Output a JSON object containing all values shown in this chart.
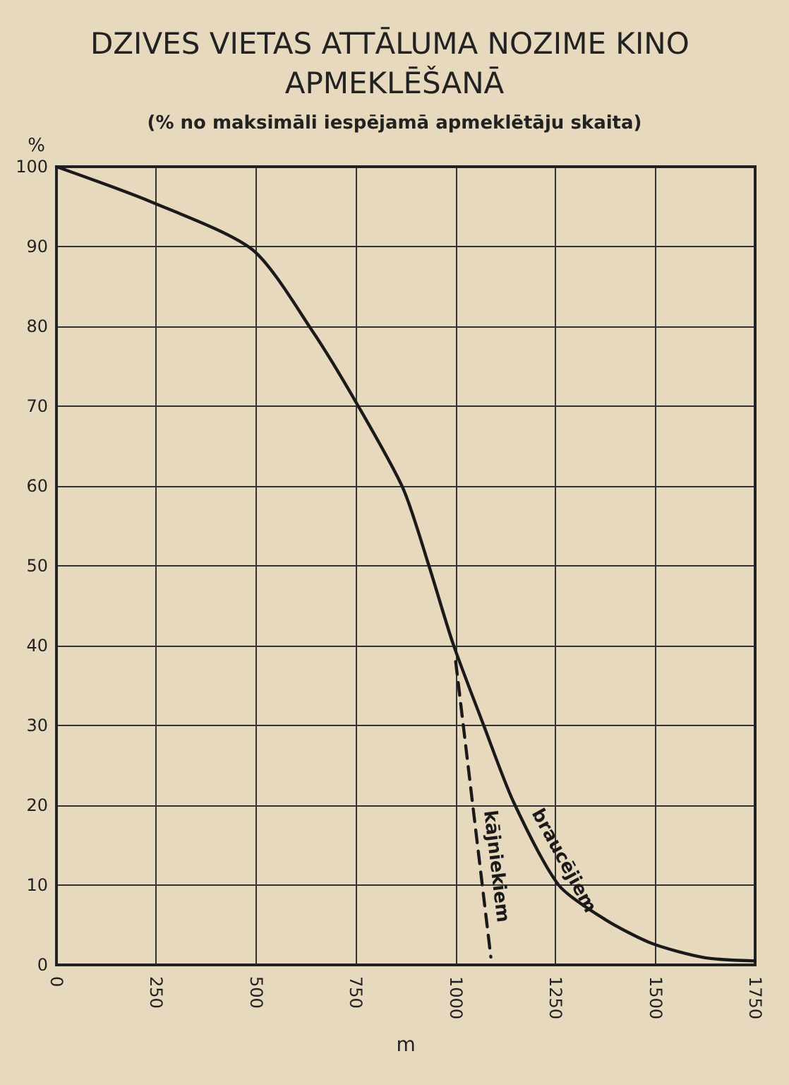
{
  "chart_data": {
    "type": "line",
    "title": "DZIVES VIETAS ATTĀLUMA NOZIME KINO APMEKLĒŠANĀ",
    "subtitle": "(% no maksimāli iespējamā apmeklētāju skaita)",
    "xlabel": "m",
    "ylabel": "%",
    "xlim": [
      0,
      1750
    ],
    "xticks": [
      0,
      250,
      500,
      750,
      1000,
      1250,
      1500,
      1750
    ],
    "ylim": [
      0,
      100
    ],
    "yticks": [
      0,
      10,
      20,
      30,
      40,
      50,
      60,
      70,
      80,
      90,
      100
    ],
    "grid": true,
    "legend": false,
    "marker": "none",
    "series": [
      {
        "name": "braucējiem",
        "color": "#1a1a1a",
        "line_style": "solid",
        "x": [
          0,
          237,
          491,
          640,
          756,
          869,
          933,
          993,
          1071,
          1145,
          1258,
          1374,
          1491,
          1625,
          1750
        ],
        "values": [
          100,
          95.6,
          89.6,
          79.5,
          70,
          59.6,
          50,
          40.3,
          29.9,
          20.4,
          10,
          5.7,
          2.7,
          0.9,
          0.5
        ]
      },
      {
        "name": "kājniekiem",
        "color": "#1a1a1a",
        "line_style": "dashed",
        "x": [
          1000,
          1088
        ],
        "values": [
          38,
          1
        ]
      }
    ]
  }
}
